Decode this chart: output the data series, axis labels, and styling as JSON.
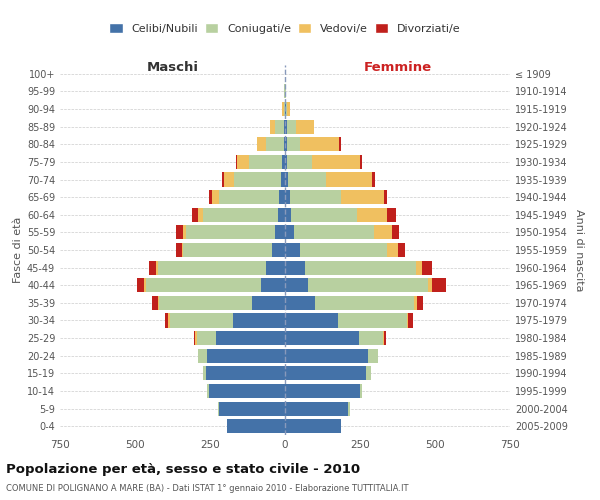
{
  "age_groups": [
    "0-4",
    "5-9",
    "10-14",
    "15-19",
    "20-24",
    "25-29",
    "30-34",
    "35-39",
    "40-44",
    "45-49",
    "50-54",
    "55-59",
    "60-64",
    "65-69",
    "70-74",
    "75-79",
    "80-84",
    "85-89",
    "90-94",
    "95-99",
    "100+"
  ],
  "birth_years": [
    "2005-2009",
    "2000-2004",
    "1995-1999",
    "1990-1994",
    "1985-1989",
    "1980-1984",
    "1975-1979",
    "1970-1974",
    "1965-1969",
    "1960-1964",
    "1955-1959",
    "1950-1954",
    "1945-1949",
    "1940-1944",
    "1935-1939",
    "1930-1934",
    "1925-1929",
    "1920-1924",
    "1915-1919",
    "1910-1914",
    "≤ 1909"
  ],
  "male_celibi": [
    195,
    220,
    255,
    265,
    260,
    230,
    175,
    110,
    80,
    65,
    45,
    35,
    25,
    20,
    15,
    10,
    5,
    5,
    0,
    0,
    0
  ],
  "male_coniugati": [
    0,
    5,
    5,
    10,
    30,
    65,
    210,
    310,
    385,
    360,
    295,
    295,
    250,
    200,
    155,
    110,
    60,
    30,
    5,
    2,
    0
  ],
  "male_vedovi": [
    0,
    0,
    0,
    0,
    0,
    5,
    5,
    5,
    5,
    5,
    5,
    10,
    15,
    25,
    35,
    40,
    30,
    15,
    5,
    1,
    0
  ],
  "male_divorziati": [
    0,
    0,
    0,
    0,
    0,
    5,
    10,
    20,
    25,
    25,
    20,
    25,
    20,
    10,
    5,
    5,
    0,
    0,
    0,
    0,
    0
  ],
  "female_celibi": [
    185,
    210,
    250,
    270,
    275,
    245,
    175,
    100,
    75,
    65,
    50,
    30,
    20,
    15,
    10,
    5,
    5,
    5,
    2,
    0,
    0
  ],
  "female_coniugati": [
    0,
    5,
    5,
    15,
    35,
    80,
    230,
    330,
    400,
    370,
    290,
    265,
    220,
    170,
    125,
    85,
    45,
    30,
    5,
    2,
    0
  ],
  "female_vedovi": [
    0,
    0,
    0,
    0,
    0,
    5,
    5,
    10,
    15,
    20,
    35,
    60,
    100,
    145,
    155,
    160,
    130,
    60,
    10,
    2,
    0
  ],
  "female_divorziati": [
    0,
    0,
    0,
    0,
    0,
    5,
    15,
    20,
    45,
    35,
    25,
    25,
    30,
    10,
    10,
    5,
    5,
    0,
    0,
    0,
    0
  ],
  "color_celibi": "#4472a8",
  "color_coniugati": "#b8d0a0",
  "color_vedovi": "#f0c060",
  "color_divorziati": "#c0201c",
  "title": "Popolazione per età, sesso e stato civile - 2010",
  "subtitle": "COMUNE DI POLIGNANO A MARE (BA) - Dati ISTAT 1° gennaio 2010 - Elaborazione TUTTITALIA.IT",
  "xlabel_left": "Maschi",
  "xlabel_right": "Femmine",
  "ylabel_left": "Fasce di età",
  "ylabel_right": "Anni di nascita",
  "xlim": 750,
  "bg_color": "#ffffff",
  "grid_color": "#cccccc"
}
